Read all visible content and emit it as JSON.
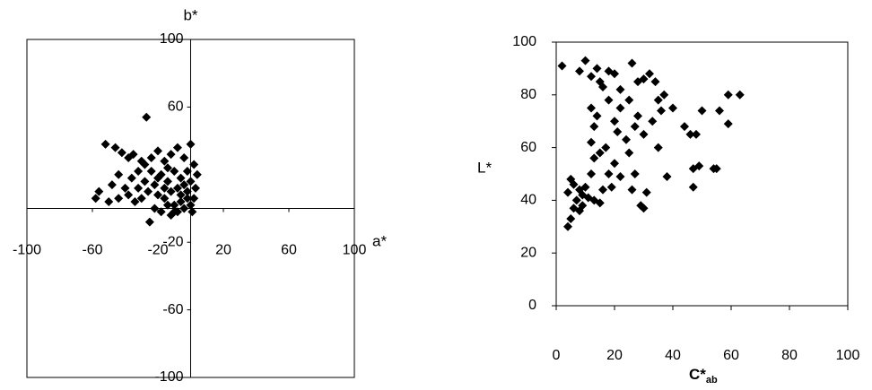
{
  "chart_data": [
    {
      "type": "scatter",
      "x_label": "a*",
      "y_label": "b*",
      "color": "#000000",
      "axes_cross_at_origin": true,
      "xlim": [
        -100,
        100
      ],
      "ylim": [
        -100,
        100
      ],
      "xticks": [
        -100,
        -60,
        -20,
        20,
        60,
        100
      ],
      "yticks": [
        -100,
        -60,
        -20,
        60,
        100
      ],
      "x": [
        -27,
        -52,
        -46,
        -42,
        -38,
        -35,
        -30,
        -44,
        -56,
        -48,
        -40,
        -36,
        -32,
        -28,
        -24,
        -20,
        -16,
        -12,
        -8,
        -4,
        0,
        2,
        4,
        -2,
        -6,
        -10,
        -14,
        -18,
        -22,
        -26,
        -30,
        -34,
        -38,
        -44,
        -50,
        -58,
        -20,
        -16,
        -12,
        -8,
        -4,
        0,
        3,
        -2,
        -6,
        -10,
        -14,
        -18,
        -22,
        -25,
        -12,
        -8,
        -4,
        0,
        2,
        -6,
        -10,
        -16,
        -20,
        -24,
        -28,
        -32,
        -14,
        -2,
        1
      ],
      "y": [
        54,
        38,
        36,
        33,
        30,
        32,
        28,
        20,
        10,
        14,
        12,
        18,
        22,
        26,
        30,
        34,
        28,
        32,
        36,
        30,
        38,
        26,
        20,
        22,
        18,
        22,
        16,
        20,
        14,
        10,
        6,
        4,
        8,
        6,
        4,
        6,
        8,
        6,
        10,
        12,
        14,
        16,
        12,
        6,
        4,
        2,
        2,
        -2,
        0,
        -8,
        -4,
        -2,
        0,
        2,
        6,
        8,
        -2,
        12,
        18,
        22,
        16,
        12,
        24,
        10,
        -2
      ]
    },
    {
      "type": "scatter",
      "x_label": "C*",
      "x_label_sub": "ab",
      "y_label": "L*",
      "color": "#000000",
      "axes_cross_at_origin": false,
      "xlim": [
        0,
        100
      ],
      "ylim": [
        0,
        100
      ],
      "xticks": [
        0,
        20,
        40,
        60,
        80,
        100
      ],
      "yticks": [
        0,
        20,
        40,
        60,
        80,
        100
      ],
      "x": [
        2,
        8,
        10,
        12,
        14,
        15,
        18,
        20,
        22,
        26,
        28,
        30,
        32,
        34,
        35,
        36,
        37,
        33,
        30,
        28,
        25,
        22,
        20,
        18,
        16,
        14,
        13,
        12,
        17,
        15,
        13,
        12,
        10,
        9,
        8,
        7,
        6,
        5,
        4,
        5,
        4,
        6,
        8,
        9,
        11,
        13,
        15,
        16,
        18,
        20,
        22,
        25,
        27,
        26,
        29,
        30,
        31,
        35,
        38,
        40,
        44,
        46,
        48,
        47,
        49,
        47,
        50,
        54,
        55,
        56,
        59,
        59,
        63,
        24,
        27,
        21,
        19,
        12
      ],
      "y": [
        91,
        89,
        93,
        87,
        90,
        85,
        89,
        88,
        82,
        92,
        85,
        86,
        88,
        85,
        78,
        74,
        80,
        70,
        65,
        72,
        78,
        75,
        70,
        78,
        83,
        72,
        68,
        75,
        60,
        58,
        56,
        50,
        45,
        42,
        44,
        40,
        46,
        48,
        43,
        33,
        30,
        37,
        36,
        38,
        41,
        40,
        39,
        44,
        50,
        54,
        49,
        58,
        50,
        44,
        38,
        37,
        43,
        60,
        49,
        75,
        68,
        65,
        65,
        52,
        53,
        45,
        74,
        52,
        52,
        74,
        69,
        80,
        80,
        63,
        68,
        66,
        45,
        62
      ]
    }
  ]
}
